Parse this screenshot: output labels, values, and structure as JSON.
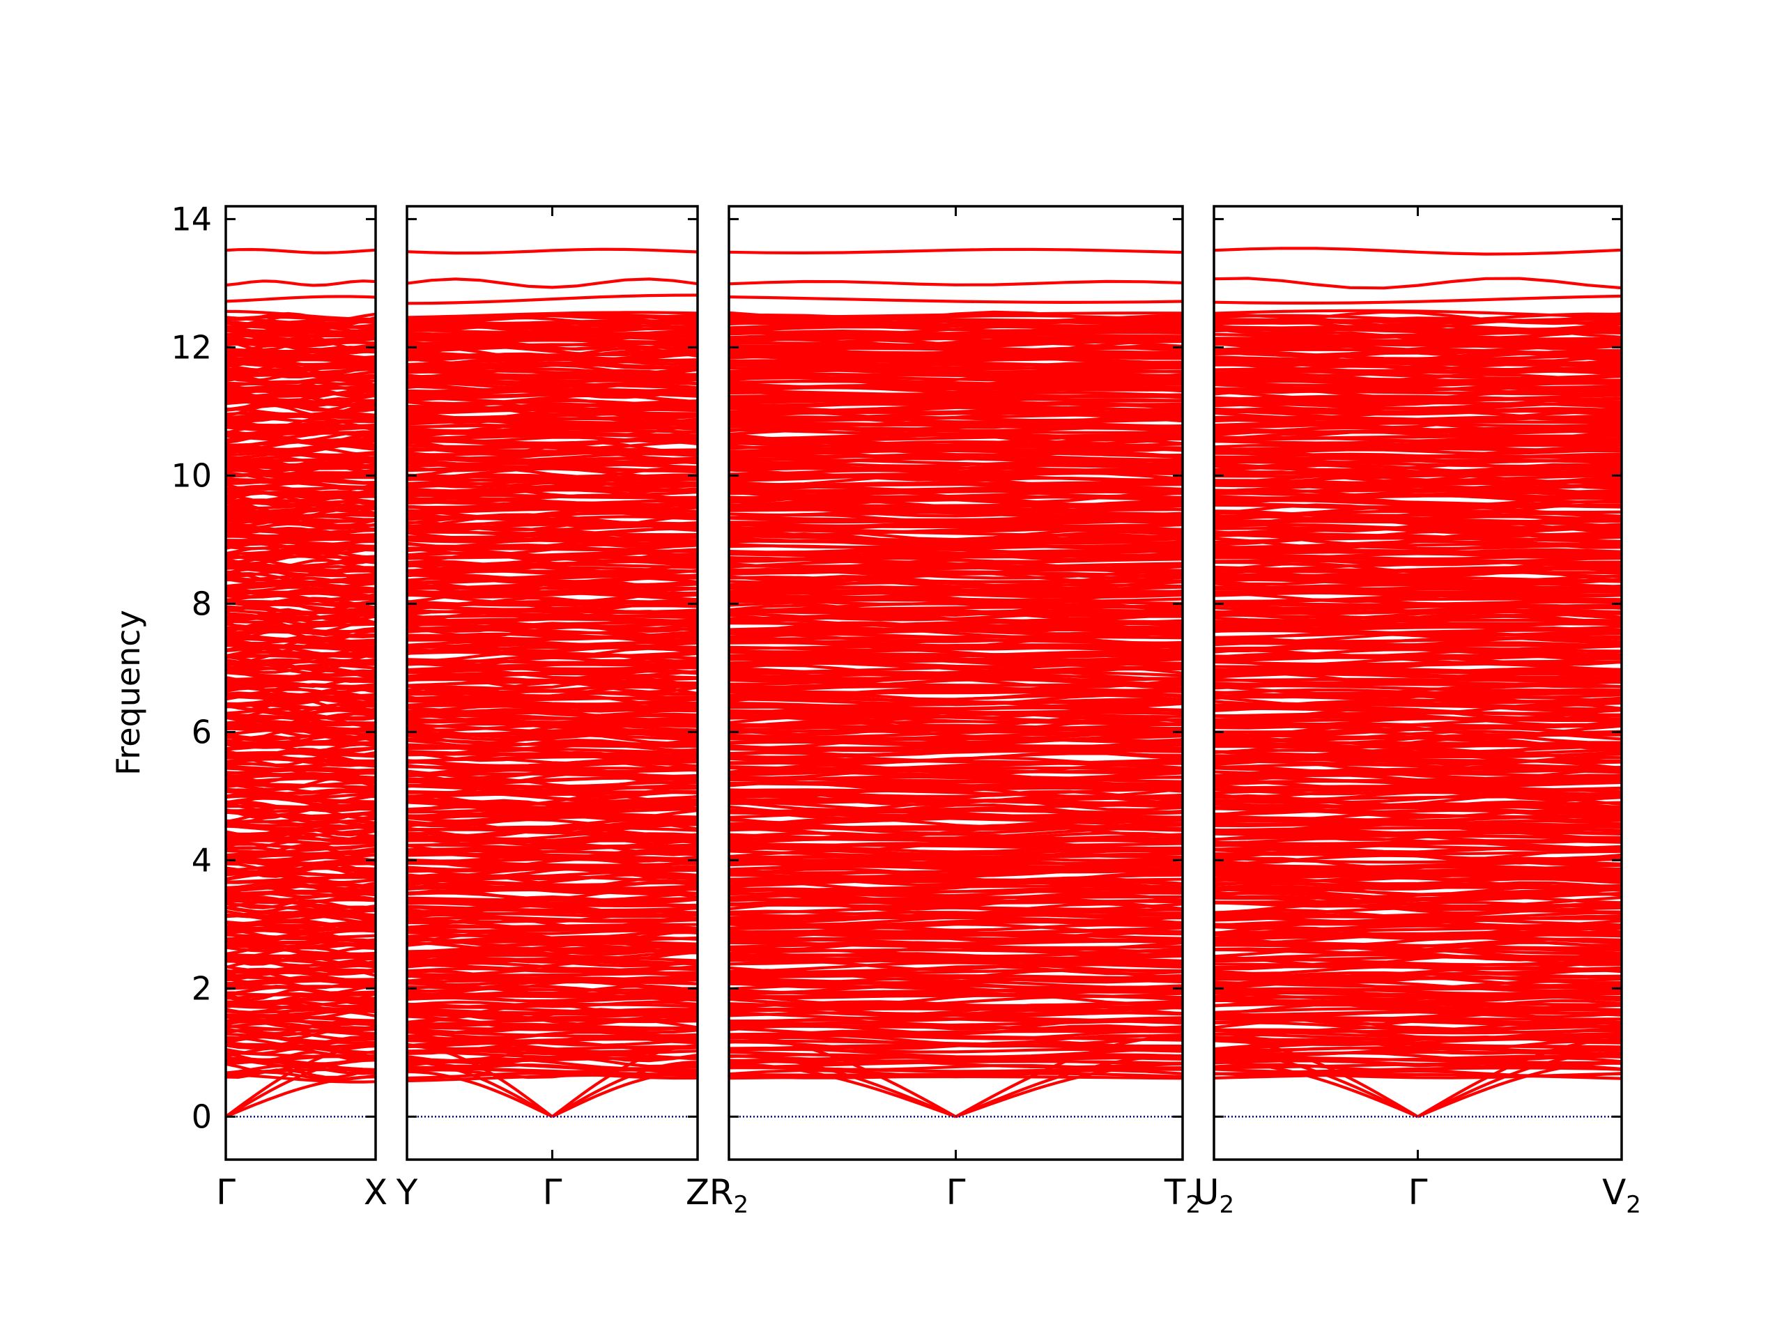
{
  "chart_data": {
    "type": "line",
    "title": "",
    "ylabel": "Frequency",
    "ylim": [
      -0.67,
      14.2
    ],
    "yticks": [
      0,
      2,
      4,
      6,
      8,
      10,
      12,
      14
    ],
    "ytick_labels": [
      "0",
      "2",
      "4",
      "6",
      "8",
      "10",
      "12",
      "14"
    ],
    "grid": false,
    "line_color": "#ff0000",
    "zero_line_color": "#00008b",
    "num_bands": 520,
    "top_bands": [
      13.5,
      13.0,
      12.75,
      12.45,
      12.3,
      12.2,
      12.05,
      11.85,
      11.75,
      11.6,
      11.45
    ],
    "dense_band_range": [
      0.6,
      12.5
    ],
    "panels": [
      {
        "segments": [
          [
            "Γ",
            "X"
          ]
        ],
        "kpoint_labels": [
          {
            "main": "Γ",
            "sub": ""
          },
          {
            "main": "X",
            "sub": ""
          }
        ],
        "acoustic_end_values": [
          0.62,
          0.9,
          1.1
        ]
      },
      {
        "segments": [
          [
            "Y",
            "Γ"
          ],
          [
            "Γ",
            "Z"
          ]
        ],
        "kpoint_labels": [
          {
            "main": "Y",
            "sub": ""
          },
          {
            "main": "Γ",
            "sub": ""
          },
          {
            "main": "Z",
            "sub": ""
          }
        ],
        "acoustic_end_values": [
          0.7,
          0.85,
          1.1
        ]
      },
      {
        "segments": [
          [
            "R",
            "Γ"
          ],
          [
            "Γ",
            "T"
          ]
        ],
        "kpoint_labels": [
          {
            "main": "R",
            "sub": "2"
          },
          {
            "main": "Γ",
            "sub": ""
          },
          {
            "main": "T",
            "sub": "2"
          }
        ],
        "acoustic_end_values": [
          0.82,
          0.95,
          1.25
        ]
      },
      {
        "segments": [
          [
            "U",
            "Γ"
          ],
          [
            "Γ",
            "V"
          ]
        ],
        "kpoint_labels": [
          {
            "main": "U",
            "sub": "2"
          },
          {
            "main": "Γ",
            "sub": ""
          },
          {
            "main": "V",
            "sub": "2"
          }
        ],
        "acoustic_end_values": [
          0.85,
          1.0,
          1.2
        ]
      }
    ]
  }
}
